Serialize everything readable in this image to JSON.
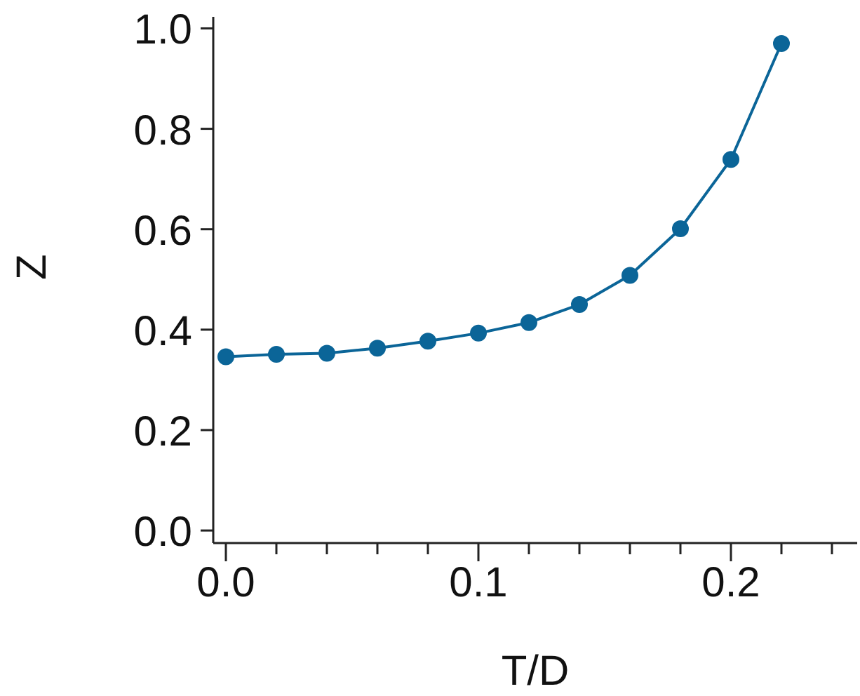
{
  "chart_data": {
    "type": "line",
    "xlabel": "T/D",
    "ylabel": "Z",
    "x": [
      0,
      0.02,
      0.04,
      0.06,
      0.08,
      0.1,
      0.12,
      0.14,
      0.16,
      0.18,
      0.2,
      0.22
    ],
    "series": [
      {
        "color": "#0b6598",
        "values": [
          0.346,
          0.351,
          0.353,
          0.363,
          0.377,
          0.393,
          0.414,
          0.45,
          0.508,
          0.601,
          0.739,
          0.97
        ]
      }
    ],
    "xlim": [
      -0.005,
      0.25
    ],
    "xticks": [
      {
        "value": 0,
        "label": "0.0"
      },
      {
        "value": 0.02,
        "label": null
      },
      {
        "value": 0.04,
        "label": null
      },
      {
        "value": 0.06,
        "label": null
      },
      {
        "value": 0.08,
        "label": null
      },
      {
        "value": 0.1,
        "label": "0.1"
      },
      {
        "value": 0.12,
        "label": null
      },
      {
        "value": 0.14,
        "label": null
      },
      {
        "value": 0.16,
        "label": null
      },
      {
        "value": 0.18,
        "label": null
      },
      {
        "value": 0.2,
        "label": "0.2"
      },
      {
        "value": 0.22,
        "label": null
      },
      {
        "value": 0.24,
        "label": null
      }
    ],
    "ylim": [
      -0.025,
      1.023
    ],
    "yticks": [
      {
        "value": 0,
        "label": "0.0"
      },
      {
        "value": 0.2,
        "label": "0.2"
      },
      {
        "value": 0.4,
        "label": "0.4"
      },
      {
        "value": 0.6,
        "label": "0.6"
      },
      {
        "value": 0.8,
        "label": "0.8"
      },
      {
        "value": 1,
        "label": "1.0"
      }
    ],
    "grid": false,
    "legend": false,
    "marker": "circle",
    "line_style": "solid"
  }
}
